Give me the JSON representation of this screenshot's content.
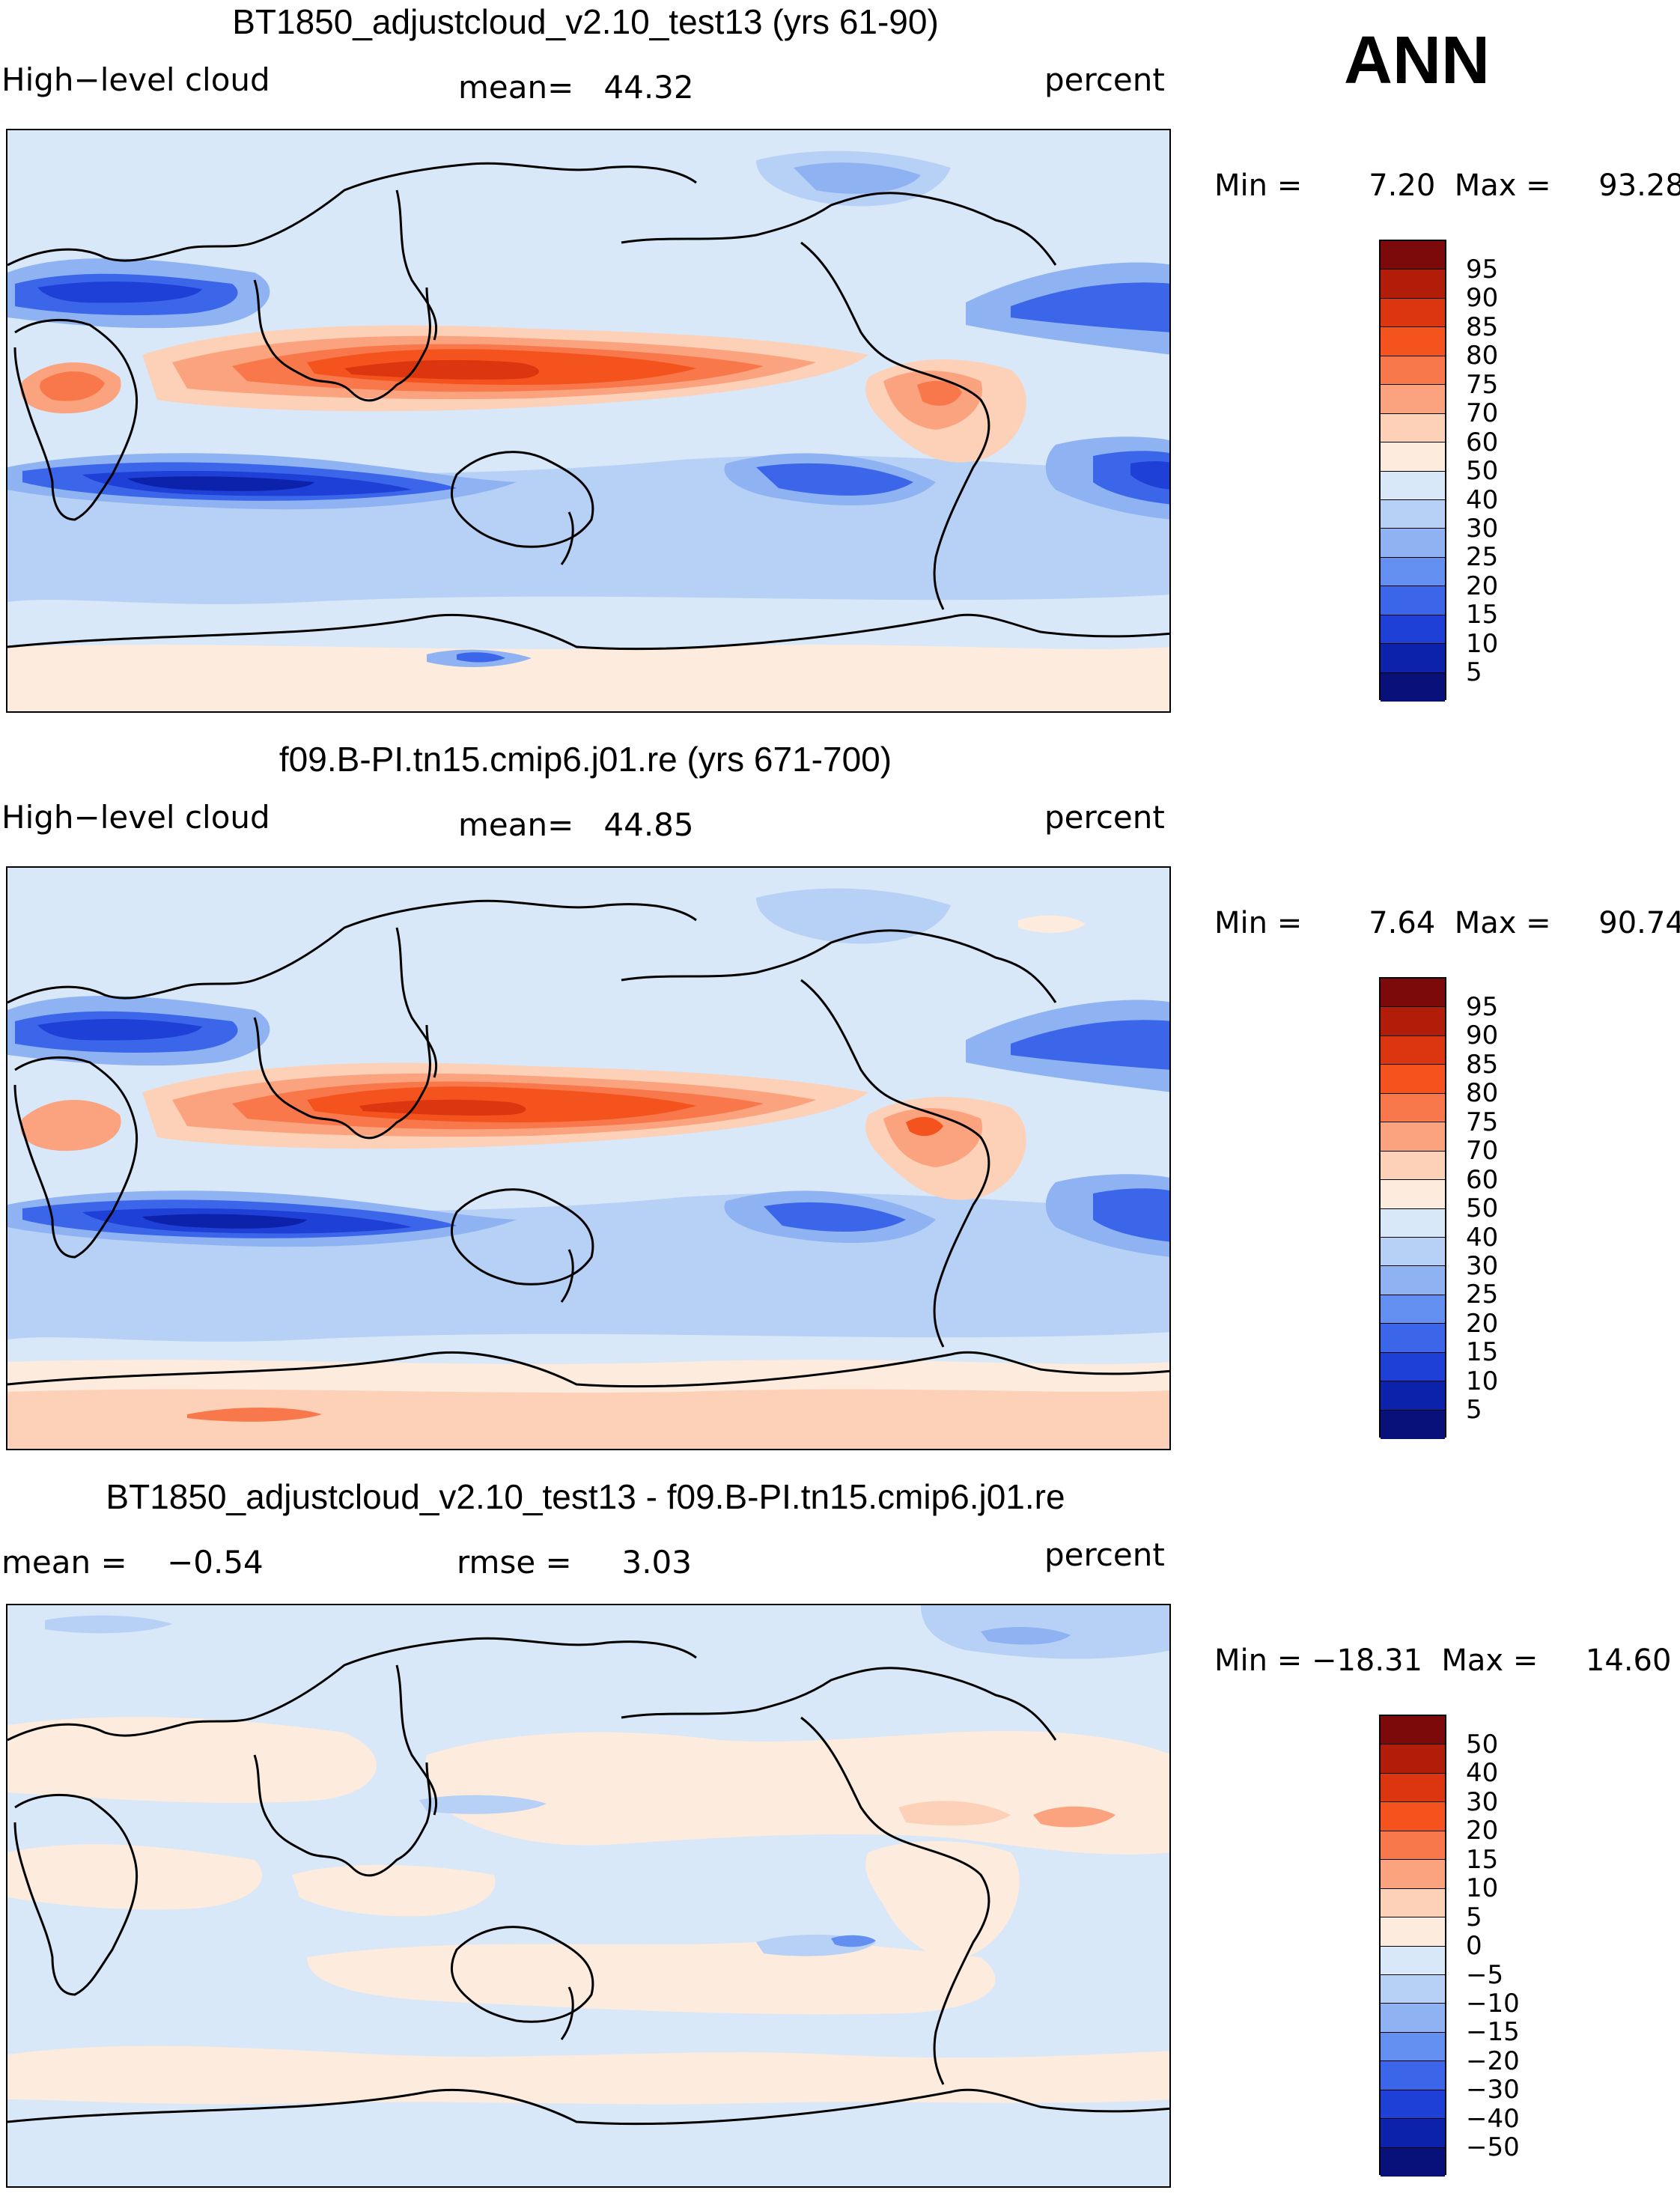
{
  "season": "ANN",
  "units": "percent",
  "panel1": {
    "title": "BT1850_adjustcloud_v2.10_test13 (yrs 61-90)",
    "variable": "High−level cloud",
    "mean_label": "mean=",
    "mean_value": "44.32",
    "min_label": "Min =",
    "min_value": "7.20",
    "max_label": "Max =",
    "max_value": "93.28"
  },
  "panel2": {
    "title": "f09.B-PI.tn15.cmip6.j01.re (yrs 671-700)",
    "variable": "High−level cloud",
    "mean_label": "mean=",
    "mean_value": "44.85",
    "min_label": "Min =",
    "min_value": "7.64",
    "max_label": "Max =",
    "max_value": "90.74"
  },
  "panel3": {
    "title": "BT1850_adjustcloud_v2.10_test13 - f09.B-PI.tn15.cmip6.j01.re",
    "mean_label": "mean =",
    "mean_value": "−0.54",
    "rmse_label": "rmse =",
    "rmse_value": "3.03",
    "min_label": "Min =",
    "min_value": "−18.31",
    "max_label": "Max =",
    "max_value": "14.60"
  },
  "colorbar_abs": {
    "levels": [
      "95",
      "90",
      "85",
      "80",
      "75",
      "70",
      "60",
      "50",
      "40",
      "30",
      "25",
      "20",
      "15",
      "10",
      "5"
    ],
    "colors": [
      "#7d0a0a",
      "#b11d09",
      "#db360f",
      "#f4531e",
      "#f8784b",
      "#fba27e",
      "#fdd0b8",
      "#fdebdd",
      "#d8e8f8",
      "#b6d0f6",
      "#8fb2f2",
      "#628ff0",
      "#3b66ea",
      "#1f40d7",
      "#0c22ab",
      "#08107a"
    ]
  },
  "colorbar_diff": {
    "levels": [
      "50",
      "40",
      "30",
      "20",
      "15",
      "10",
      "5",
      "0",
      "−5",
      "−10",
      "−15",
      "−20",
      "−30",
      "−40",
      "−50"
    ],
    "colors": [
      "#7d0a0a",
      "#b11d09",
      "#db360f",
      "#f4531e",
      "#f8784b",
      "#fba27e",
      "#fdd0b8",
      "#fdebdd",
      "#d8e8f8",
      "#b6d0f6",
      "#8fb2f2",
      "#628ff0",
      "#3b66ea",
      "#1f40d7",
      "#0c22ab",
      "#08107a"
    ]
  }
}
